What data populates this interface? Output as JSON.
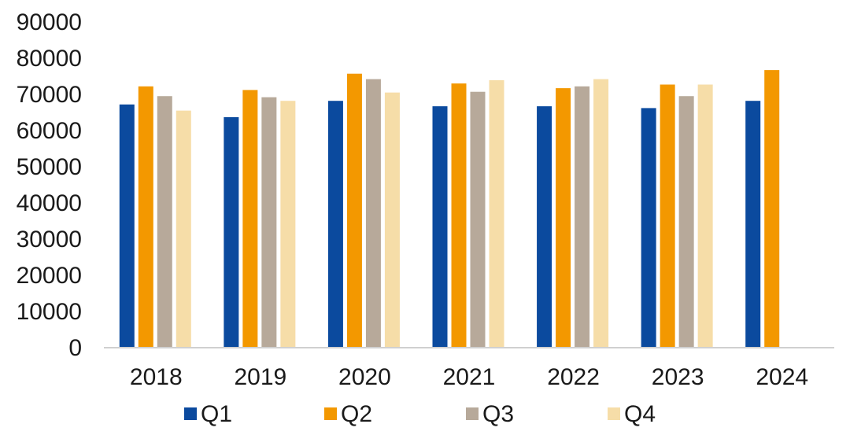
{
  "chart_data": {
    "type": "bar",
    "title": "",
    "xlabel": "",
    "ylabel": "",
    "categories": [
      "2018",
      "2019",
      "2020",
      "2021",
      "2022",
      "2023",
      "2024"
    ],
    "ylim": [
      0,
      90000
    ],
    "yticks": [
      "0",
      "10000",
      "20000",
      "30000",
      "40000",
      "50000",
      "60000",
      "70000",
      "80000",
      "90000"
    ],
    "grid": false,
    "legend_position": "bottom",
    "series": [
      {
        "name": "Q1",
        "color": "#0B4A9E",
        "values": [
          67000,
          63500,
          68000,
          66500,
          66500,
          66000,
          68000
        ]
      },
      {
        "name": "Q2",
        "color": "#F39800",
        "values": [
          72000,
          71000,
          75500,
          72800,
          71500,
          72500,
          76500
        ]
      },
      {
        "name": "Q3",
        "color": "#B7A99A",
        "values": [
          69300,
          69000,
          74000,
          70500,
          72000,
          69300,
          null
        ]
      },
      {
        "name": "Q4",
        "color": "#F6DDA8",
        "values": [
          65300,
          68000,
          70300,
          73700,
          74000,
          72500,
          null
        ]
      }
    ]
  }
}
